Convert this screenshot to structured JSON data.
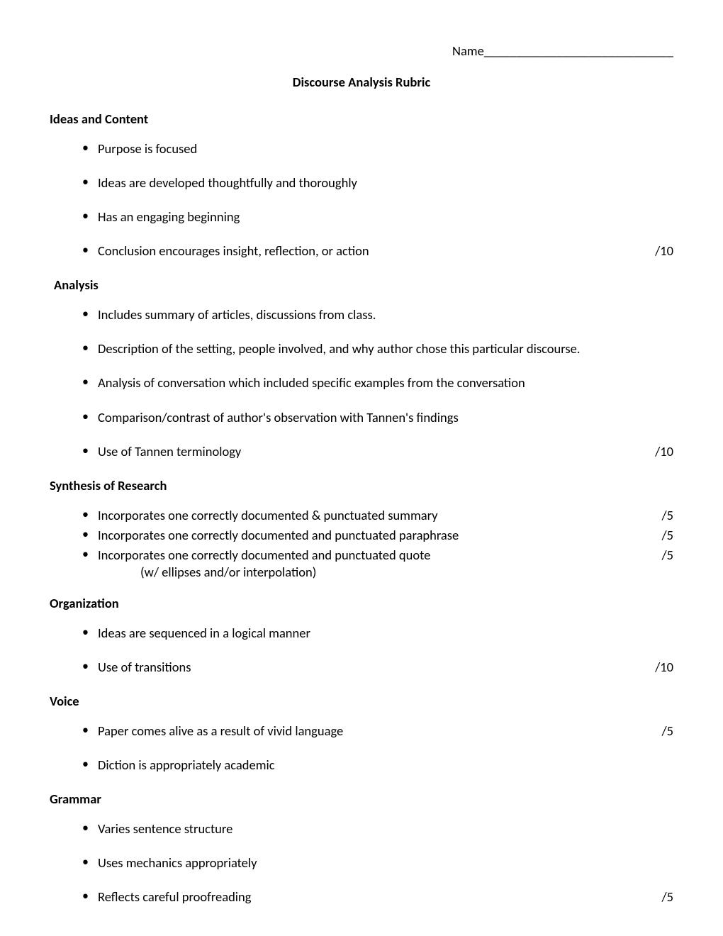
{
  "header": {
    "name_label": "Name_____________________________",
    "title": "Discourse Analysis Rubric"
  },
  "sections": {
    "ideas": {
      "heading": "Ideas and Content",
      "items": [
        "Purpose is focused",
        "Ideas are developed thoughtfully and thoroughly",
        "Has an engaging beginning",
        "Conclusion encourages insight, reflection, or action"
      ],
      "score": "/10"
    },
    "analysis": {
      "heading": "Analysis",
      "items": [
        "Includes summary of articles, discussions from class.",
        "Description of the setting, people involved, and why author chose this particular discourse.",
        "Analysis of conversation which included specific examples from the conversation",
        "Comparison/contrast of author's observation with Tannen's findings",
        "Use of Tannen terminology"
      ],
      "score": "/10"
    },
    "synthesis": {
      "heading": "Synthesis of Research",
      "items": [
        "Incorporates one correctly documented & punctuated summary",
        "Incorporates one correctly documented and punctuated paraphrase",
        "Incorporates one correctly  documented and punctuated quote"
      ],
      "sub_note": "(w/ ellipses and/or interpolation)",
      "scores": [
        "/5",
        "/5",
        "/5"
      ]
    },
    "organization": {
      "heading": "Organization",
      "items": [
        "Ideas are sequenced in a logical manner",
        "Use of transitions"
      ],
      "score": "/10"
    },
    "voice": {
      "heading": "Voice",
      "items": [
        "Paper comes alive as a result of vivid language",
        "Diction is appropriately academic"
      ],
      "score": "/5"
    },
    "grammar": {
      "heading": "Grammar",
      "items": [
        "Varies sentence structure",
        "Uses mechanics appropriately",
        "Reflects careful proofreading"
      ],
      "score": "/5"
    }
  }
}
